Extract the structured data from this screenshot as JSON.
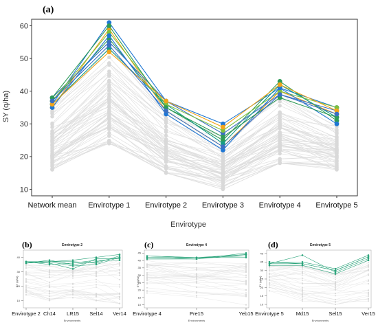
{
  "colors": {
    "background_lines": "#dcdcdc",
    "background_points": "#d9d9d9",
    "top_series": [
      "#1f77d4",
      "#2e9b57",
      "#f2a51a",
      "#3a6fc2",
      "#159b86",
      "#7fbf3f"
    ],
    "mini_series": "#2aa37a"
  },
  "chart_data": [
    {
      "panel": "(a)",
      "type": "line",
      "title": "",
      "xlabel": "Envirotype",
      "ylabel": "SY (q/ha)",
      "categories": [
        "Network mean",
        "Envirotype 1",
        "Envirotype 2",
        "Envirotype 3",
        "Envirotype 4",
        "Envirotype 5"
      ],
      "yticks": [
        10,
        20,
        30,
        40,
        50,
        60
      ],
      "ylim": [
        8,
        62
      ],
      "background_series_count": 60,
      "background_range": {
        "low": [
          16,
          24,
          15,
          10,
          18,
          16
        ],
        "high": [
          35,
          53,
          34,
          26,
          40,
          31
        ]
      },
      "series": [
        {
          "values": [
            36,
            61,
            37,
            30,
            41,
            35
          ]
        },
        {
          "values": [
            37,
            56,
            35,
            25,
            43,
            31
          ]
        },
        {
          "values": [
            35,
            59,
            34,
            23,
            40,
            33
          ]
        },
        {
          "values": [
            38,
            55,
            37,
            27,
            39,
            34
          ]
        },
        {
          "values": [
            36,
            53,
            36,
            24,
            42,
            32
          ]
        },
        {
          "values": [
            37,
            58,
            36,
            28,
            40,
            35
          ]
        },
        {
          "values": [
            35,
            57,
            33,
            22,
            41,
            30
          ]
        },
        {
          "values": [
            38,
            60,
            35,
            26,
            38,
            32
          ]
        },
        {
          "values": [
            36,
            52,
            37,
            29,
            42,
            34
          ]
        },
        {
          "values": [
            37,
            54,
            34,
            23,
            39,
            33
          ]
        }
      ]
    },
    {
      "panel": "(b)",
      "type": "line",
      "title": "Envirotype 2",
      "xlabel": "Environments",
      "ylabel": "SY (q/ha)",
      "categories": [
        "Envirotype 2",
        "Ch14",
        "LR15",
        "Sel14",
        "Ver14"
      ],
      "yticks": [
        10,
        20,
        30,
        40
      ],
      "ylim": [
        5,
        45
      ],
      "background_series_count": 30,
      "background_range": {
        "low": [
          14,
          10,
          12,
          10,
          8
        ],
        "high": [
          35,
          34,
          33,
          36,
          38
        ]
      },
      "series": [
        {
          "values": [
            37,
            37,
            38,
            40,
            42
          ]
        },
        {
          "values": [
            36,
            38,
            35,
            37,
            40
          ]
        },
        {
          "values": [
            37,
            36,
            32,
            39,
            39
          ]
        },
        {
          "values": [
            36,
            37,
            37,
            36,
            41
          ]
        },
        {
          "values": [
            37,
            35,
            36,
            38,
            38
          ]
        },
        {
          "values": [
            36,
            37,
            34,
            35,
            40
          ]
        }
      ]
    },
    {
      "panel": "(c)",
      "type": "line",
      "title": "Envirotype 4",
      "xlabel": "Environments",
      "ylabel": "SY (q/ha)",
      "categories": [
        "Envirotype 4",
        "Pre15",
        "Yeb15"
      ],
      "yticks": [
        10,
        15,
        20,
        25,
        30,
        35,
        40,
        45
      ],
      "ylim": [
        8,
        47
      ],
      "background_series_count": 30,
      "background_range": {
        "low": [
          18,
          14,
          10
        ],
        "high": [
          40,
          39,
          41
        ]
      },
      "series": [
        {
          "values": [
            43,
            42,
            44
          ]
        },
        {
          "values": [
            42,
            41,
            45
          ]
        },
        {
          "values": [
            42,
            42,
            43
          ]
        },
        {
          "values": [
            41,
            41,
            44
          ]
        },
        {
          "values": [
            43,
            42,
            42
          ]
        }
      ]
    },
    {
      "panel": "(d)",
      "type": "line",
      "title": "Envirotype 5",
      "xlabel": "Environments",
      "ylabel": "SY (q/ha)",
      "categories": [
        "Envirotype 5",
        "Md15",
        "Sel15",
        "Ver15"
      ],
      "yticks": [
        10,
        15,
        20,
        25,
        30,
        35,
        40
      ],
      "ylim": [
        8,
        42
      ],
      "background_series_count": 30,
      "background_range": {
        "low": [
          18,
          12,
          10,
          12
        ],
        "high": [
          33,
          33,
          28,
          36
        ]
      },
      "series": [
        {
          "values": [
            35,
            34,
            30,
            38
          ]
        },
        {
          "values": [
            34,
            39,
            29,
            37
          ]
        },
        {
          "values": [
            35,
            35,
            31,
            39
          ]
        },
        {
          "values": [
            33,
            33,
            28,
            36
          ]
        },
        {
          "values": [
            34,
            34,
            30,
            38
          ]
        }
      ]
    }
  ]
}
